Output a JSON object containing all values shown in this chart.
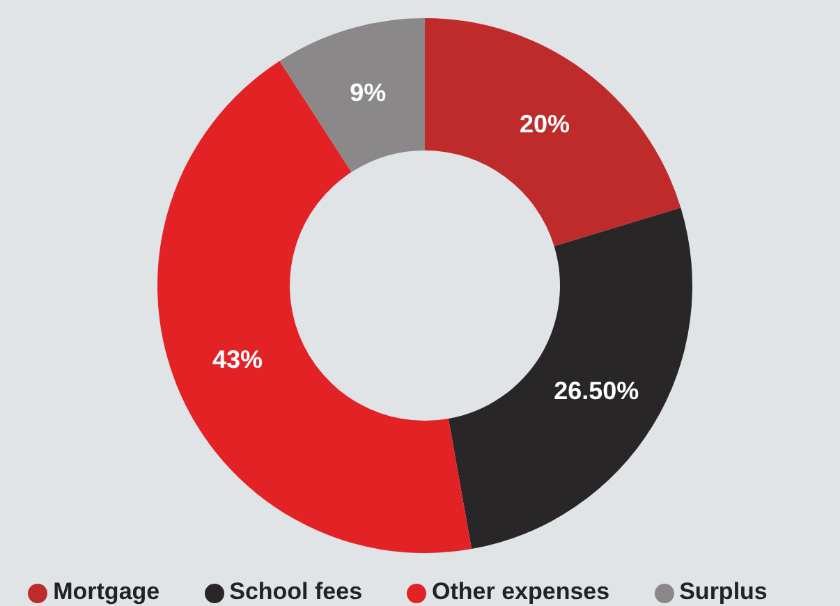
{
  "chart_data": {
    "type": "donut",
    "categories": [
      "Mortgage",
      "School fees",
      "Other expenses",
      "Surplus"
    ],
    "values": [
      20,
      26.5,
      43,
      9
    ],
    "value_labels": [
      "20%",
      "26.50%",
      "43%",
      "9%"
    ],
    "colors": [
      "#bf2a2a",
      "#282626",
      "#e22225",
      "#8a8889"
    ],
    "legend": "bottom"
  }
}
